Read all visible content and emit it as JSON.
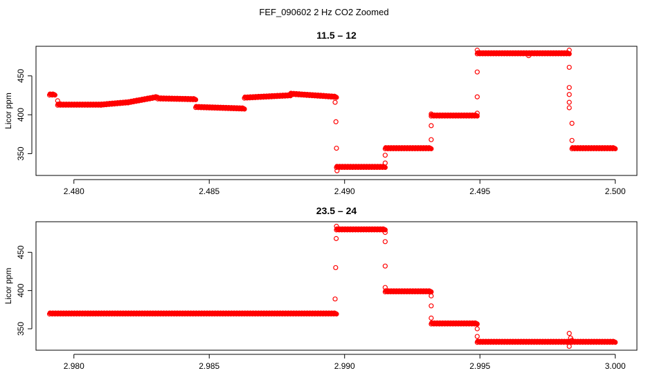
{
  "figure": {
    "title": "FEF_090602  2 Hz CO2 Zoomed"
  },
  "chart_data": [
    {
      "type": "scatter",
      "title": "11.5 – 12",
      "xlabel": "",
      "ylabel": "Licor ppm",
      "xlim": [
        2.4786,
        2.5008
      ],
      "ylim": [
        322,
        488
      ],
      "xticks": [
        2.48,
        2.485,
        2.49,
        2.495,
        2.5
      ],
      "xtick_labels": [
        "2.480",
        "2.485",
        "2.490",
        "2.495",
        "2.500"
      ],
      "yticks": [
        350,
        400,
        450
      ],
      "ytick_labels": [
        "350",
        "400",
        "450"
      ],
      "color": "#ff0000",
      "marker": "open-circle",
      "grid": false,
      "segments": [
        [
          2.4791,
          2.4793,
          426,
          426
        ],
        [
          2.4794,
          2.481,
          413,
          413
        ],
        [
          2.481,
          2.482,
          413,
          416
        ],
        [
          2.482,
          2.4831,
          416,
          423
        ],
        [
          2.4831,
          2.4845,
          421,
          420
        ],
        [
          2.4845,
          2.4863,
          410,
          408
        ],
        [
          2.4863,
          2.488,
          422,
          425
        ],
        [
          2.488,
          2.4897,
          427,
          423
        ],
        [
          2.4897,
          2.4915,
          333,
          333
        ],
        [
          2.4915,
          2.4932,
          357,
          357
        ],
        [
          2.4932,
          2.4949,
          399,
          399
        ],
        [
          2.4949,
          2.4983,
          479,
          479
        ],
        [
          2.4984,
          2.5,
          357,
          357
        ]
      ],
      "points": [
        [
          2.4794,
          418
        ],
        [
          2.4795,
          414
        ],
        [
          2.48965,
          416
        ],
        [
          2.48968,
          391
        ],
        [
          2.4897,
          357
        ],
        [
          2.48972,
          328
        ],
        [
          2.4915,
          338
        ],
        [
          2.4915,
          348
        ],
        [
          2.4932,
          368
        ],
        [
          2.4932,
          386
        ],
        [
          2.4932,
          401
        ],
        [
          2.4949,
          402
        ],
        [
          2.4949,
          423
        ],
        [
          2.4949,
          455
        ],
        [
          2.4949,
          483
        ],
        [
          2.4968,
          476
        ],
        [
          2.4983,
          483
        ],
        [
          2.4983,
          461
        ],
        [
          2.4983,
          435
        ],
        [
          2.4983,
          426
        ],
        [
          2.4983,
          416
        ],
        [
          2.4983,
          409
        ],
        [
          2.4984,
          389
        ],
        [
          2.4984,
          367
        ]
      ]
    },
    {
      "type": "scatter",
      "title": "23.5 – 24",
      "xlabel": "",
      "ylabel": "Licor ppm",
      "xlim": [
        2.9786,
        3.0008
      ],
      "ylim": [
        322,
        490
      ],
      "xticks": [
        2.98,
        2.985,
        2.99,
        2.995,
        3.0
      ],
      "xtick_labels": [
        "2.980",
        "2.985",
        "2.990",
        "2.995",
        "3.000"
      ],
      "yticks": [
        350,
        400,
        450
      ],
      "ytick_labels": [
        "350",
        "400",
        "450"
      ],
      "color": "#ff0000",
      "marker": "open-circle",
      "grid": false,
      "segments": [
        [
          2.9791,
          2.9897,
          370,
          370
        ],
        [
          2.9897,
          2.9915,
          480,
          480
        ],
        [
          2.9915,
          2.9932,
          399,
          399
        ],
        [
          2.9932,
          2.9949,
          357,
          357
        ],
        [
          2.9949,
          3.0,
          333,
          333
        ]
      ],
      "points": [
        [
          2.98965,
          389
        ],
        [
          2.98967,
          430
        ],
        [
          2.98969,
          468
        ],
        [
          2.9897,
          484
        ],
        [
          2.9915,
          476
        ],
        [
          2.9915,
          464
        ],
        [
          2.9915,
          432
        ],
        [
          2.9915,
          404
        ],
        [
          2.9932,
          393
        ],
        [
          2.9932,
          380
        ],
        [
          2.9932,
          364
        ],
        [
          2.9949,
          350
        ],
        [
          2.9949,
          340
        ],
        [
          2.9983,
          344
        ],
        [
          2.9983,
          327
        ],
        [
          2.99835,
          338
        ],
        [
          2.9984,
          335
        ]
      ]
    }
  ]
}
